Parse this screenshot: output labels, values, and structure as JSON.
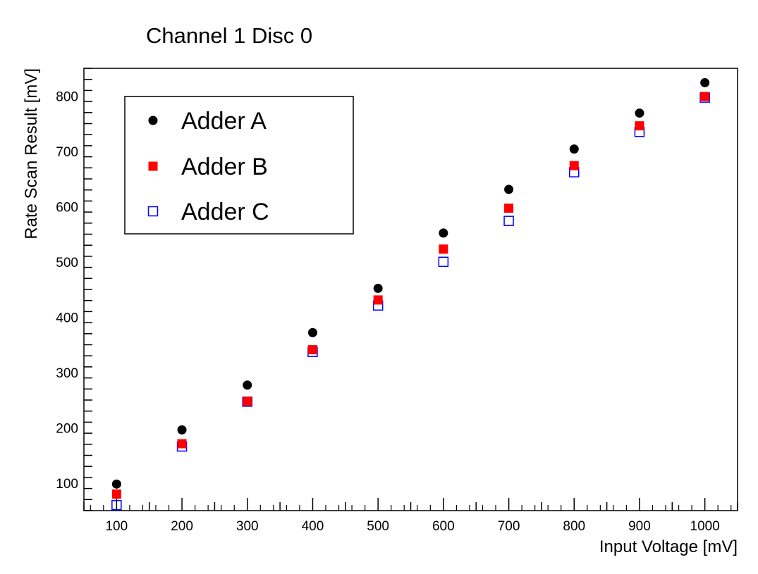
{
  "chart_data": {
    "type": "scatter",
    "title": "Channel 1 Disc 0",
    "xlabel": "Input Voltage [mV]",
    "ylabel": "Rate Scan Result [mV]",
    "xlim": [
      50,
      1050
    ],
    "ylim": [
      50,
      850
    ],
    "xticks": [
      100,
      200,
      300,
      400,
      500,
      600,
      700,
      800,
      900,
      1000
    ],
    "yticks": [
      100,
      200,
      300,
      400,
      500,
      600,
      700,
      800
    ],
    "grid": false,
    "legend_position": "top-left",
    "x": [
      100,
      200,
      300,
      400,
      500,
      600,
      700,
      800,
      900,
      1000
    ],
    "series": [
      {
        "name": "Adder A",
        "marker": "filled-circle",
        "color": "#000000",
        "values": [
          98,
          196,
          277,
          372,
          452,
          552,
          631,
          704,
          769,
          824
        ]
      },
      {
        "name": "Adder B",
        "marker": "filled-square",
        "color": "#ff0000",
        "values": [
          80,
          171,
          248,
          341,
          431,
          523,
          597,
          674,
          746,
          799
        ]
      },
      {
        "name": "Adder C",
        "marker": "open-square",
        "color": "#0000ff",
        "values": [
          60,
          166,
          247,
          337,
          421,
          500,
          574,
          662,
          735,
          797
        ]
      }
    ]
  }
}
